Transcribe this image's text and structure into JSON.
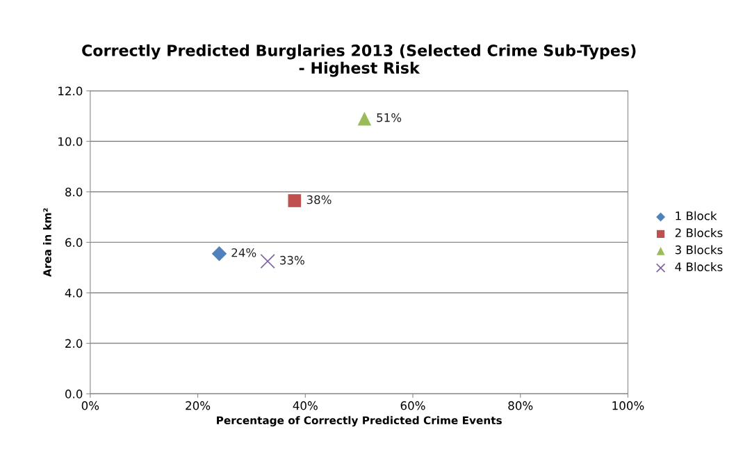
{
  "chart_data": {
    "type": "scatter",
    "title": "Correctly Predicted Burglaries 2013 (Selected Crime Sub-Types)\n- Highest Risk",
    "xlabel": "Percentage of Correctly Predicted Crime Events",
    "ylabel": "Area in km²",
    "xlim": [
      0,
      100
    ],
    "xticks": [
      {
        "value": 0,
        "label": "0%"
      },
      {
        "value": 20,
        "label": "20%"
      },
      {
        "value": 40,
        "label": "40%"
      },
      {
        "value": 60,
        "label": "60%"
      },
      {
        "value": 80,
        "label": "80%"
      },
      {
        "value": 100,
        "label": "100%"
      }
    ],
    "ylim": [
      0,
      12
    ],
    "yticks": [
      {
        "value": 0,
        "label": "0.0"
      },
      {
        "value": 2,
        "label": "2.0"
      },
      {
        "value": 4,
        "label": "4.0"
      },
      {
        "value": 6,
        "label": "6.0"
      },
      {
        "value": 8,
        "label": "8.0"
      },
      {
        "value": 10,
        "label": "10.0"
      },
      {
        "value": 12,
        "label": "12.0"
      }
    ],
    "grid": "y",
    "legend": "right",
    "annotations": [
      {
        "text": "24%",
        "x": 24,
        "y": 5.55
      },
      {
        "text": "38%",
        "x": 38,
        "y": 7.65
      },
      {
        "text": "51%",
        "x": 51,
        "y": 10.9
      },
      {
        "text": "33%",
        "x": 33,
        "y": 5.25
      }
    ],
    "series": [
      {
        "name": "1 Block",
        "color": "#4f81bd",
        "marker": "diamond",
        "x": [
          24
        ],
        "values": [
          5.55
        ]
      },
      {
        "name": "2 Blocks",
        "color": "#c0504d",
        "marker": "square",
        "x": [
          38
        ],
        "values": [
          7.65
        ]
      },
      {
        "name": "3 Blocks",
        "color": "#9bbb59",
        "marker": "triangle",
        "x": [
          51
        ],
        "values": [
          10.9
        ]
      },
      {
        "name": "4 Blocks",
        "color": "#8064a2",
        "marker": "cross",
        "x": [
          33
        ],
        "values": [
          5.25
        ]
      }
    ]
  }
}
